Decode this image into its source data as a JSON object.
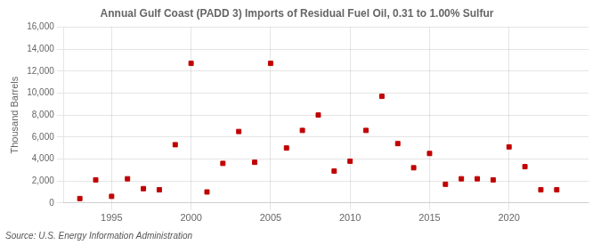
{
  "chart_data": {
    "type": "scatter",
    "title": "Annual Gulf Coast (PADD 3) Imports of Residual Fuel Oil, 0.31 to 1.00% Sulfur",
    "ylabel": "Thousand Barrels",
    "annotations": [
      "Source: U.S. Energy Information Administration"
    ],
    "x": [
      1993,
      1994,
      1995,
      1996,
      1997,
      1998,
      1999,
      2000,
      2001,
      2002,
      2003,
      2004,
      2005,
      2006,
      2007,
      2008,
      2009,
      2010,
      2011,
      2012,
      2013,
      2014,
      2015,
      2016,
      2017,
      2018,
      2019,
      2020,
      2021,
      2022,
      2023
    ],
    "values": [
      400,
      2100,
      600,
      2200,
      1300,
      1200,
      5300,
      12700,
      1000,
      3600,
      6500,
      3700,
      12700,
      5000,
      6600,
      8000,
      2900,
      3800,
      6600,
      9700,
      5400,
      3200,
      4500,
      1700,
      2200,
      2200,
      2100,
      5100,
      3300,
      1200,
      1200
    ],
    "color": "#c00000",
    "marker": "square",
    "xlim": [
      1992,
      2025
    ],
    "xticks": [
      1995,
      2000,
      2005,
      2010,
      2015,
      2020
    ],
    "ylim": [
      0,
      16000
    ],
    "yticks": [
      0,
      {
        "value": 2000,
        "label": "2,000"
      },
      {
        "value": 4000,
        "label": "4,000"
      },
      {
        "value": 6000,
        "label": "6,000"
      },
      {
        "value": 8000,
        "label": "8,000"
      },
      {
        "value": 10000,
        "label": "10,000"
      },
      {
        "value": 12000,
        "label": "12,000"
      },
      {
        "value": 14000,
        "label": "14,000"
      },
      {
        "value": 16000,
        "label": "16,000"
      }
    ],
    "grid": true
  }
}
